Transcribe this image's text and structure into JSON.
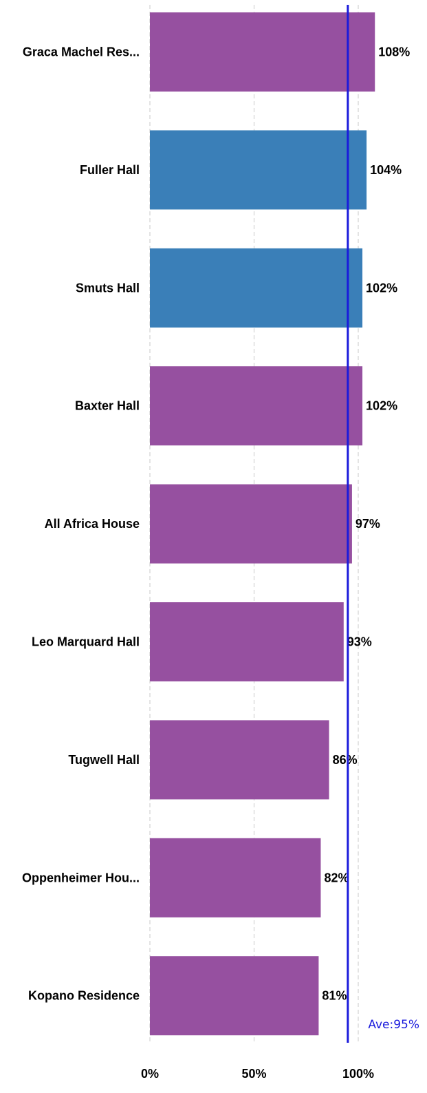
{
  "chart_data": {
    "type": "bar",
    "orientation": "horizontal",
    "categories": [
      "Graca Machel Res...",
      "Fuller Hall",
      "Smuts Hall",
      "Baxter Hall",
      "All Africa House",
      "Leo Marquard Hall",
      "Tugwell Hall",
      "Oppenheimer Hou...",
      "Kopano Residence"
    ],
    "values": [
      108,
      104,
      102,
      102,
      97,
      93,
      86,
      82,
      81
    ],
    "value_labels": [
      "108%",
      "104%",
      "102%",
      "102%",
      "97%",
      "93%",
      "86%",
      "82%",
      "81%"
    ],
    "bar_colors": [
      "#9650a0",
      "#3a7fb8",
      "#3a7fb8",
      "#9650a0",
      "#9650a0",
      "#9650a0",
      "#9650a0",
      "#9650a0",
      "#9650a0"
    ],
    "xlim": [
      0,
      100
    ],
    "x_ticks": [
      0,
      50,
      100
    ],
    "x_tick_labels": [
      "0%",
      "50%",
      "100%"
    ],
    "grid": "vertical dashed",
    "reference_line": {
      "value": 95,
      "label": "Ave:95%",
      "color": "#1a1adc"
    }
  }
}
